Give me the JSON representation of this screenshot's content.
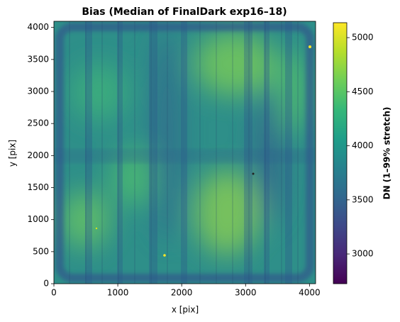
{
  "chart_data": {
    "type": "heatmap",
    "title": "Bias (Median of FinalDark exp16–18)",
    "xlabel": "x [pix]",
    "ylabel": "y [pix]",
    "xlim": [
      0,
      4096
    ],
    "ylim": [
      0,
      4096
    ],
    "xticks": [
      0,
      1000,
      2000,
      3000,
      4000
    ],
    "yticks": [
      0,
      500,
      1000,
      1500,
      2000,
      2500,
      3000,
      3500,
      4000
    ],
    "colorbar": {
      "label": "DN (1–99% stretch)",
      "colormap": "viridis",
      "lim": [
        2725,
        5138
      ],
      "ticks": [
        3000,
        3500,
        4000,
        4500,
        5000
      ]
    }
  }
}
